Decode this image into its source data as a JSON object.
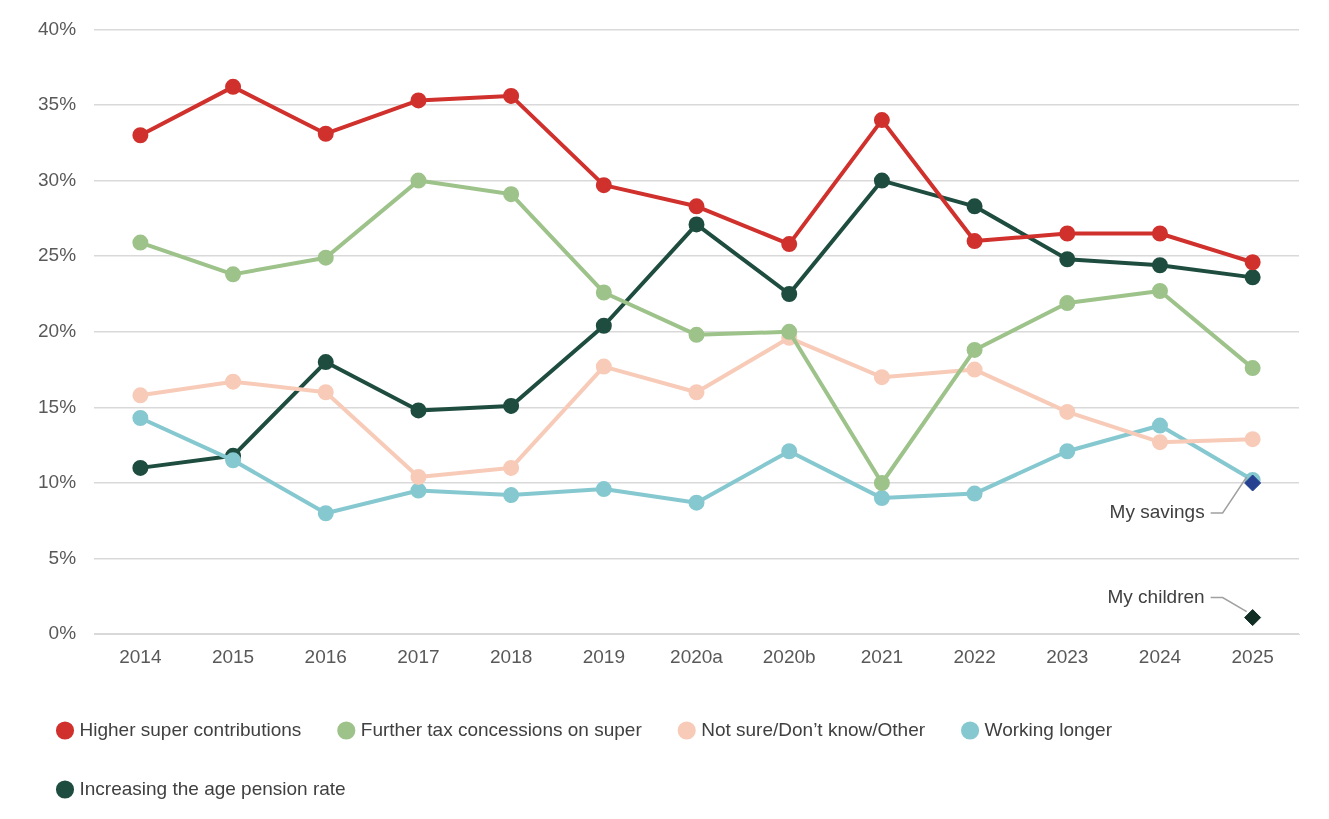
{
  "chart_data": {
    "type": "line",
    "categories": [
      "2014",
      "2015",
      "2016",
      "2017",
      "2018",
      "2019",
      "2020a",
      "2020b",
      "2021",
      "2022",
      "2023",
      "2024",
      "2025"
    ],
    "series": [
      {
        "name": "Higher super contributions",
        "color": "#d0312d",
        "values": [
          33.0,
          36.2,
          33.1,
          35.3,
          35.6,
          29.7,
          28.3,
          25.8,
          34.0,
          26.0,
          26.5,
          26.5,
          24.6
        ]
      },
      {
        "name": "Further tax concessions on super",
        "color": "#9dc38a",
        "values": [
          25.9,
          23.8,
          24.9,
          30.0,
          29.1,
          22.6,
          19.8,
          20.0,
          10.0,
          18.8,
          21.9,
          22.7,
          17.6
        ]
      },
      {
        "name": "Not sure/Don’t know/Other",
        "color": "#f7cbb8",
        "values": [
          15.8,
          16.7,
          16.0,
          10.4,
          11.0,
          17.7,
          16.0,
          19.6,
          17.0,
          17.5,
          14.7,
          12.7,
          12.9
        ]
      },
      {
        "name": "Working longer",
        "color": "#86c8d0",
        "values": [
          14.3,
          11.5,
          8.0,
          9.5,
          9.2,
          9.6,
          8.7,
          12.1,
          9.0,
          9.3,
          12.1,
          13.8,
          10.2
        ]
      },
      {
        "name": "Increasing the age pension rate",
        "color": "#1e4d40",
        "values": [
          11.0,
          11.8,
          18.0,
          14.8,
          15.1,
          20.4,
          27.1,
          22.5,
          30.0,
          28.3,
          24.8,
          24.4,
          23.6
        ]
      },
      {
        "name": "My savings",
        "type": "scatter",
        "marker": "diamond",
        "color": "#27408f",
        "values": [
          null,
          null,
          null,
          null,
          null,
          null,
          null,
          null,
          null,
          null,
          null,
          null,
          10.0
        ]
      },
      {
        "name": "My children",
        "type": "scatter",
        "marker": "diamond",
        "color": "#102e24",
        "values": [
          null,
          null,
          null,
          null,
          null,
          null,
          null,
          null,
          null,
          null,
          null,
          null,
          1.1
        ]
      }
    ],
    "ylim": [
      0,
      40
    ],
    "yticks": [
      {
        "value": 0,
        "label": "0%"
      },
      {
        "value": 5,
        "label": "5%"
      },
      {
        "value": 10,
        "label": "10%"
      },
      {
        "value": 15,
        "label": "15%"
      },
      {
        "value": 20,
        "label": "20%"
      },
      {
        "value": 25,
        "label": "25%"
      },
      {
        "value": 30,
        "label": "30%"
      },
      {
        "value": 35,
        "label": "35%"
      },
      {
        "value": 40,
        "label": "40%"
      }
    ],
    "grid": "y",
    "legend": "bottom",
    "marker": "circle"
  }
}
